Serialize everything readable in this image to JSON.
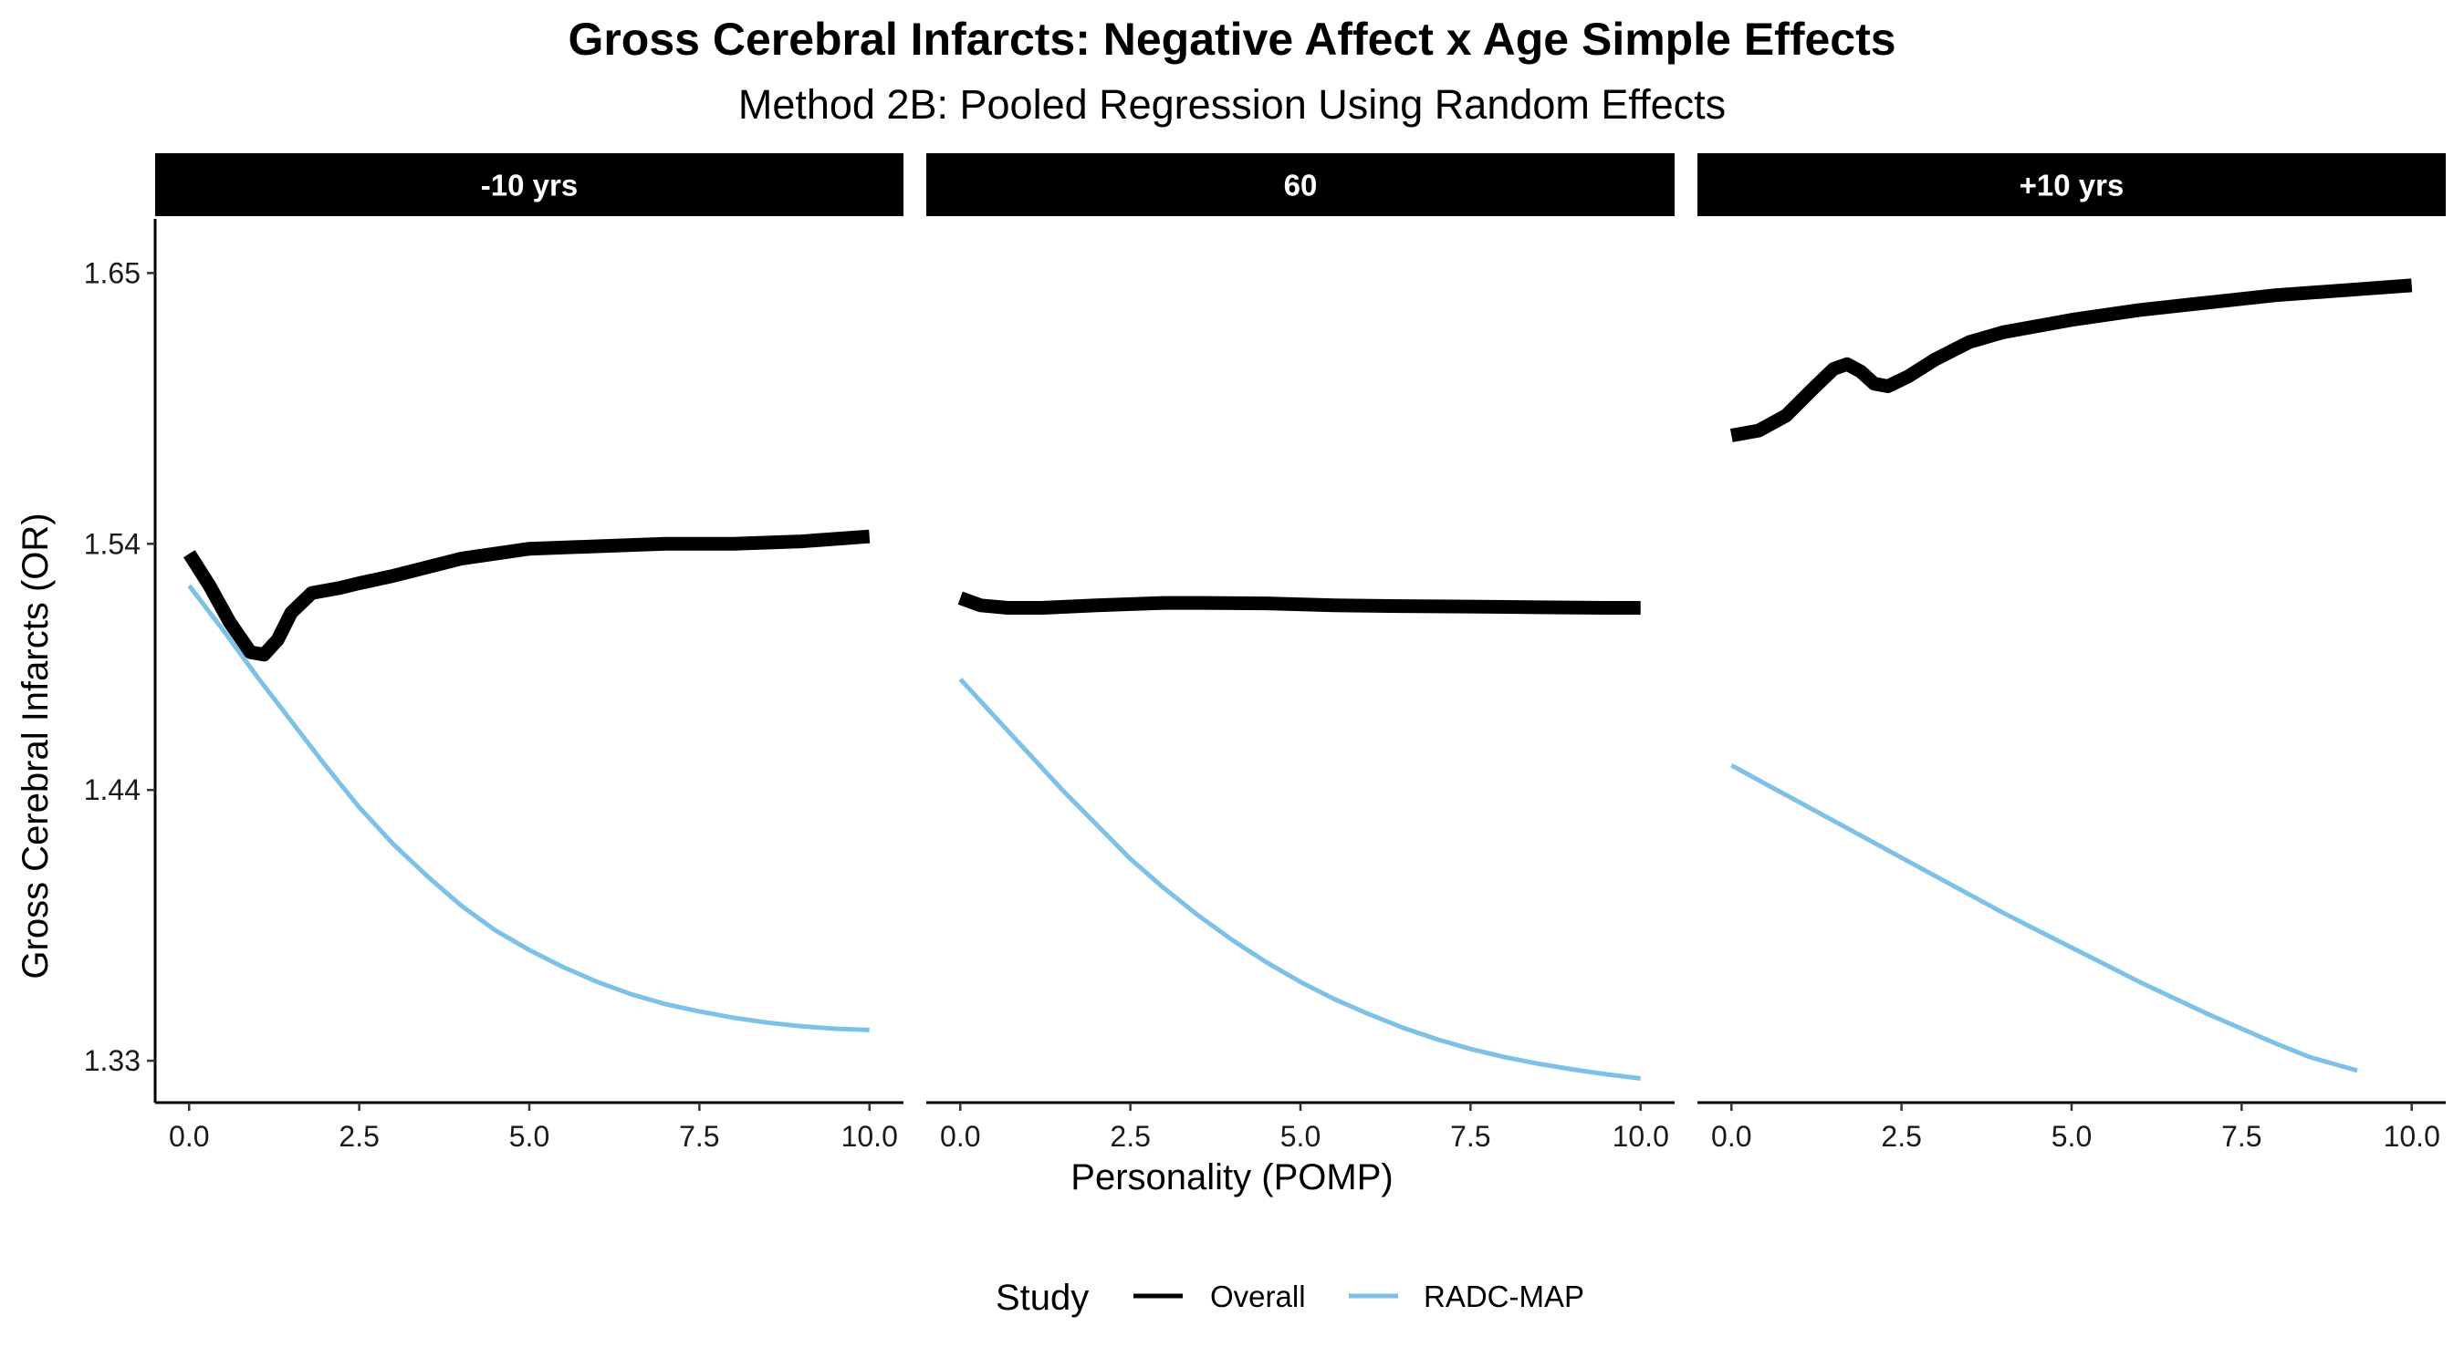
{
  "chart_data": {
    "type": "line",
    "title": "Gross Cerebral Infarcts: Negative Affect x Age Simple Effects",
    "subtitle": "Method 2B: Pooled Regression Using Random Effects",
    "xlabel": "Personality (POMP)",
    "ylabel": "Gross Cerebral Infarcts (OR)",
    "xlim": [
      -0.5,
      10.5
    ],
    "ylim": [
      1.313,
      1.672
    ],
    "x_ticks": [
      0,
      2.5,
      5,
      7.5,
      10
    ],
    "x_tick_labels": [
      "0.0",
      "2.5",
      "5.0",
      "7.5",
      "10.0"
    ],
    "y_ticks": [
      1.33,
      1.44,
      1.54,
      1.65
    ],
    "y_tick_labels": [
      "1.33",
      "1.44",
      "1.54",
      "1.65"
    ],
    "grid": false,
    "legend": {
      "title": "Study",
      "position": "bottom",
      "items": [
        {
          "name": "Overall",
          "color": "#000000"
        },
        {
          "name": "RADC-MAP",
          "color": "#7dc0e8"
        }
      ]
    },
    "panels": [
      {
        "label": "-10 yrs",
        "series": [
          {
            "name": "Overall",
            "color": "#000000",
            "points": [
              [
                0,
                1.536
              ],
              [
                0.3,
                1.523
              ],
              [
                0.6,
                1.508
              ],
              [
                0.9,
                1.496
              ],
              [
                1.1,
                1.495
              ],
              [
                1.3,
                1.501
              ],
              [
                1.5,
                1.512
              ],
              [
                1.8,
                1.52
              ],
              [
                2.2,
                1.522
              ],
              [
                2.5,
                1.524
              ],
              [
                3,
                1.527
              ],
              [
                4,
                1.534
              ],
              [
                5,
                1.538
              ],
              [
                6,
                1.539
              ],
              [
                7,
                1.54
              ],
              [
                8,
                1.54
              ],
              [
                9,
                1.541
              ],
              [
                10,
                1.543
              ]
            ]
          },
          {
            "name": "RADC-MAP",
            "color": "#7dc0e8",
            "points": [
              [
                0,
                1.523
              ],
              [
                0.5,
                1.505
              ],
              [
                1,
                1.486
              ],
              [
                1.5,
                1.468
              ],
              [
                2,
                1.45
              ],
              [
                2.5,
                1.433
              ],
              [
                3,
                1.418
              ],
              [
                3.5,
                1.405
              ],
              [
                4,
                1.393
              ],
              [
                4.5,
                1.383
              ],
              [
                5,
                1.375
              ],
              [
                5.5,
                1.368
              ],
              [
                6,
                1.362
              ],
              [
                6.5,
                1.357
              ],
              [
                7,
                1.353
              ],
              [
                7.5,
                1.35
              ],
              [
                8,
                1.3475
              ],
              [
                8.5,
                1.3455
              ],
              [
                9,
                1.344
              ],
              [
                9.5,
                1.343
              ],
              [
                10,
                1.3425
              ]
            ]
          }
        ]
      },
      {
        "label": "60",
        "series": [
          {
            "name": "Overall",
            "color": "#000000",
            "points": [
              [
                0,
                1.518
              ],
              [
                0.3,
                1.515
              ],
              [
                0.7,
                1.514
              ],
              [
                1.2,
                1.514
              ],
              [
                2,
                1.515
              ],
              [
                3,
                1.516
              ],
              [
                3.6,
                1.516
              ],
              [
                4.5,
                1.5158
              ],
              [
                5.5,
                1.515
              ],
              [
                6.5,
                1.5147
              ],
              [
                7.5,
                1.5145
              ],
              [
                8.5,
                1.5142
              ],
              [
                9.5,
                1.514
              ],
              [
                10,
                1.514
              ]
            ]
          },
          {
            "name": "RADC-MAP",
            "color": "#7dc0e8",
            "points": [
              [
                0,
                1.485
              ],
              [
                0.5,
                1.47
              ],
              [
                1,
                1.455
              ],
              [
                1.5,
                1.44
              ],
              [
                2,
                1.426
              ],
              [
                2.5,
                1.412
              ],
              [
                3,
                1.4
              ],
              [
                3.5,
                1.389
              ],
              [
                4,
                1.379
              ],
              [
                4.5,
                1.37
              ],
              [
                5,
                1.362
              ],
              [
                5.5,
                1.355
              ],
              [
                6,
                1.349
              ],
              [
                6.5,
                1.3435
              ],
              [
                7,
                1.3388
              ],
              [
                7.5,
                1.3348
              ],
              [
                8,
                1.3315
              ],
              [
                8.5,
                1.3288
              ],
              [
                9,
                1.3265
              ],
              [
                9.5,
                1.3245
              ],
              [
                10,
                1.3228
              ]
            ]
          }
        ]
      },
      {
        "label": "+10 yrs",
        "series": [
          {
            "name": "Overall",
            "color": "#000000",
            "points": [
              [
                0,
                1.584
              ],
              [
                0.4,
                1.586
              ],
              [
                0.8,
                1.592
              ],
              [
                1.2,
                1.603
              ],
              [
                1.5,
                1.611
              ],
              [
                1.7,
                1.613
              ],
              [
                1.9,
                1.61
              ],
              [
                2.1,
                1.605
              ],
              [
                2.3,
                1.604
              ],
              [
                2.6,
                1.608
              ],
              [
                3,
                1.615
              ],
              [
                3.5,
                1.622
              ],
              [
                4,
                1.626
              ],
              [
                5,
                1.631
              ],
              [
                6,
                1.635
              ],
              [
                7,
                1.638
              ],
              [
                8,
                1.641
              ],
              [
                9,
                1.643
              ],
              [
                10,
                1.645
              ]
            ]
          },
          {
            "name": "RADC-MAP",
            "color": "#7dc0e8",
            "points": [
              [
                0,
                1.45
              ],
              [
                0.5,
                1.4425
              ],
              [
                1,
                1.435
              ],
              [
                1.5,
                1.4275
              ],
              [
                2,
                1.42
              ],
              [
                2.5,
                1.4125
              ],
              [
                3,
                1.405
              ],
              [
                3.5,
                1.3975
              ],
              [
                4,
                1.39
              ],
              [
                4.5,
                1.383
              ],
              [
                5,
                1.376
              ],
              [
                5.5,
                1.369
              ],
              [
                6,
                1.362
              ],
              [
                6.5,
                1.3555
              ],
              [
                7,
                1.349
              ],
              [
                7.5,
                1.343
              ],
              [
                8,
                1.337
              ],
              [
                8.5,
                1.3315
              ],
              [
                9.2,
                1.326
              ]
            ]
          }
        ]
      }
    ]
  }
}
